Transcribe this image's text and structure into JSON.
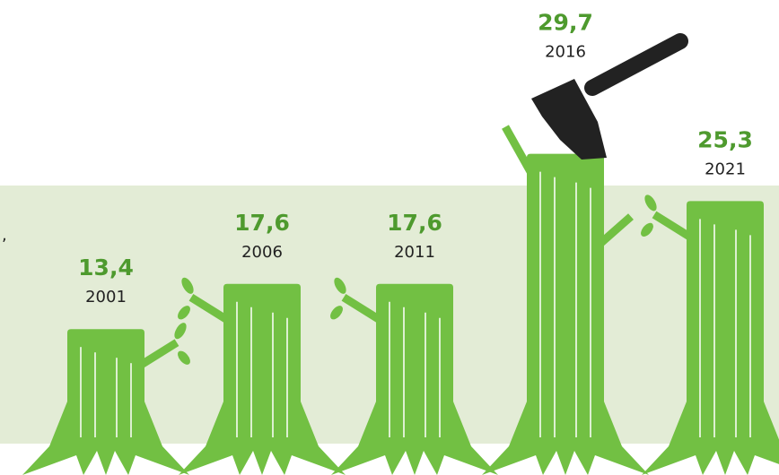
{
  "chart_data": {
    "type": "bar",
    "categories": [
      "2001",
      "2006",
      "2011",
      "2016",
      "2021"
    ],
    "values": [
      13.4,
      17.6,
      17.6,
      29.7,
      25.3
    ],
    "value_labels": [
      "13,4",
      "17,6",
      "17,6",
      "29,7",
      "25,3"
    ],
    "color": "#72c043",
    "ylim": [
      0,
      44
    ],
    "side_text": ","
  }
}
